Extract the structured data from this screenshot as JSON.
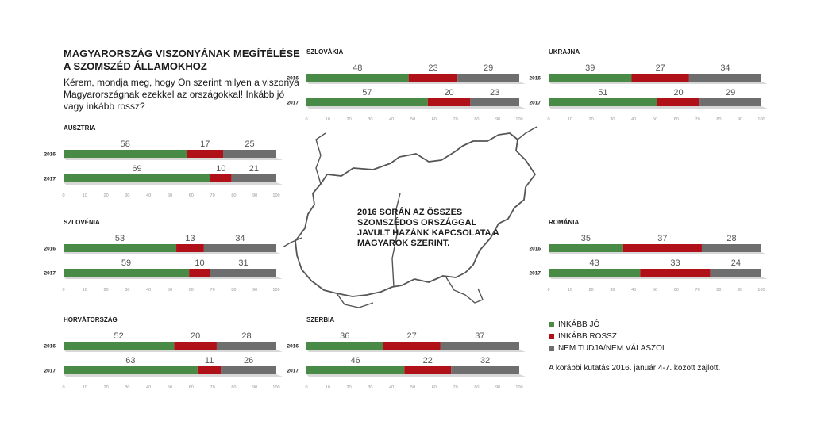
{
  "title": "MAGYARORSZÁG VISZONYÁNAK MEGÍTÉLÉSE A SZOMSZÉD ÁLLAMOKHOZ",
  "subtitle": "Kérem, mondja meg, hogy Ön szerint milyen a viszonya Magyarországnak ezekkel az országokkal! Inkább jó vagy inkább rossz?",
  "center_note": "2016 SORÁN AZ ÖSSZES SZOMSZÉDOS ORSZÁGGAL JAVULT HAZÁNK KAPCSOLATA A MAGYAROK SZERINT.",
  "footnote": "A korábbi kutatás 2016. január 4-7. között zajlott.",
  "colors": {
    "good": "#4a8a47",
    "bad": "#b01018",
    "dontknow": "#6e6e6e",
    "track": "#d8d8d8"
  },
  "legend": [
    {
      "label": "INKÁBB JÓ",
      "color": "#4a8a47"
    },
    {
      "label": "INKÁBB ROSSZ",
      "color": "#b01018"
    },
    {
      "label": "NEM TUDJA/NEM VÁLASZOL",
      "color": "#6e6e6e"
    }
  ],
  "chart_data": [
    {
      "type": "bar",
      "stacked": true,
      "orientation": "horizontal",
      "title": "AUSZTRIA",
      "categories": [
        "2016",
        "2017"
      ],
      "series": [
        {
          "name": "INKÁBB JÓ",
          "values": [
            58,
            69
          ]
        },
        {
          "name": "INKÁBB ROSSZ",
          "values": [
            17,
            10
          ]
        },
        {
          "name": "NEM TUDJA/NEM VÁLASZOL",
          "values": [
            25,
            21
          ]
        }
      ],
      "xlim": [
        0,
        100
      ],
      "xticks": [
        "0",
        "10",
        "20",
        "30",
        "40",
        "50",
        "60",
        "70",
        "80",
        "90",
        "100"
      ]
    },
    {
      "type": "bar",
      "stacked": true,
      "orientation": "horizontal",
      "title": "SZLOVÉNIA",
      "categories": [
        "2016",
        "2017"
      ],
      "series": [
        {
          "name": "INKÁBB JÓ",
          "values": [
            53,
            59
          ]
        },
        {
          "name": "INKÁBB ROSSZ",
          "values": [
            13,
            10
          ]
        },
        {
          "name": "NEM TUDJA/NEM VÁLASZOL",
          "values": [
            34,
            31
          ]
        }
      ],
      "xlim": [
        0,
        100
      ],
      "xticks": [
        "0",
        "10",
        "20",
        "30",
        "40",
        "50",
        "60",
        "70",
        "80",
        "90",
        "100"
      ]
    },
    {
      "type": "bar",
      "stacked": true,
      "orientation": "horizontal",
      "title": "HORVÁTORSZÁG",
      "categories": [
        "2016",
        "2017"
      ],
      "series": [
        {
          "name": "INKÁBB JÓ",
          "values": [
            52,
            63
          ]
        },
        {
          "name": "INKÁBB ROSSZ",
          "values": [
            20,
            11
          ]
        },
        {
          "name": "NEM TUDJA/NEM VÁLASZOL",
          "values": [
            28,
            26
          ]
        }
      ],
      "xlim": [
        0,
        100
      ],
      "xticks": [
        "0",
        "10",
        "20",
        "30",
        "40",
        "50",
        "60",
        "70",
        "80",
        "90",
        "100"
      ]
    },
    {
      "type": "bar",
      "stacked": true,
      "orientation": "horizontal",
      "title": "SZLOVÁKIA",
      "categories": [
        "2016",
        "2017"
      ],
      "series": [
        {
          "name": "INKÁBB JÓ",
          "values": [
            48,
            57
          ]
        },
        {
          "name": "INKÁBB ROSSZ",
          "values": [
            23,
            20
          ]
        },
        {
          "name": "NEM TUDJA/NEM VÁLASZOL",
          "values": [
            29,
            23
          ]
        }
      ],
      "xlim": [
        0,
        100
      ],
      "xticks": [
        "0",
        "10",
        "20",
        "30",
        "40",
        "50",
        "60",
        "70",
        "80",
        "90",
        "100"
      ]
    },
    {
      "type": "bar",
      "stacked": true,
      "orientation": "horizontal",
      "title": "SZERBIA",
      "categories": [
        "2016",
        "2017"
      ],
      "series": [
        {
          "name": "INKÁBB JÓ",
          "values": [
            36,
            46
          ]
        },
        {
          "name": "INKÁBB ROSSZ",
          "values": [
            27,
            22
          ]
        },
        {
          "name": "NEM TUDJA/NEM VÁLASZOL",
          "values": [
            37,
            32
          ]
        }
      ],
      "xlim": [
        0,
        100
      ],
      "xticks": [
        "0",
        "10",
        "20",
        "30",
        "40",
        "50",
        "60",
        "70",
        "80",
        "90",
        "100"
      ]
    },
    {
      "type": "bar",
      "stacked": true,
      "orientation": "horizontal",
      "title": "UKRAJNA",
      "categories": [
        "2016",
        "2017"
      ],
      "series": [
        {
          "name": "INKÁBB JÓ",
          "values": [
            39,
            51
          ]
        },
        {
          "name": "INKÁBB ROSSZ",
          "values": [
            27,
            20
          ]
        },
        {
          "name": "NEM TUDJA/NEM VÁLASZOL",
          "values": [
            34,
            29
          ]
        }
      ],
      "xlim": [
        0,
        100
      ],
      "xticks": [
        "0",
        "10",
        "20",
        "30",
        "40",
        "50",
        "60",
        "70",
        "80",
        "90",
        "100"
      ]
    },
    {
      "type": "bar",
      "stacked": true,
      "orientation": "horizontal",
      "title": "ROMÁNIA",
      "categories": [
        "2016",
        "2017"
      ],
      "series": [
        {
          "name": "INKÁBB JÓ",
          "values": [
            35,
            43
          ]
        },
        {
          "name": "INKÁBB ROSSZ",
          "values": [
            37,
            33
          ]
        },
        {
          "name": "NEM TUDJA/NEM VÁLASZOL",
          "values": [
            28,
            24
          ]
        }
      ],
      "xlim": [
        0,
        100
      ],
      "xticks": [
        "0",
        "10",
        "20",
        "30",
        "40",
        "50",
        "60",
        "70",
        "80",
        "90",
        "100"
      ]
    }
  ]
}
